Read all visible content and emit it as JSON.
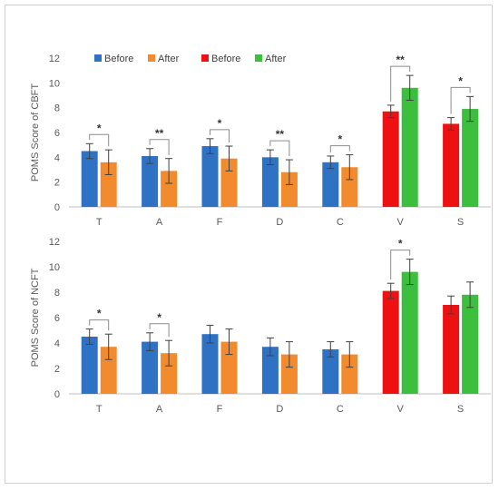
{
  "chart_data": [
    {
      "type": "bar",
      "ylabel": "POMS Score of CBFT",
      "categories": [
        "T",
        "A",
        "F",
        "D",
        "C",
        "V",
        "S"
      ],
      "yticks": [
        0,
        2,
        4,
        6,
        8,
        10,
        12
      ],
      "ylim": [
        0,
        12
      ],
      "grid": false,
      "legend": {
        "placement": "top-left",
        "entries": [
          {
            "label": "Before",
            "color": "#2f72c4"
          },
          {
            "label": "After",
            "color": "#f28a2e"
          },
          {
            "label": "Before",
            "color": "#ee1111"
          },
          {
            "label": "After",
            "color": "#3cbf3c"
          }
        ]
      },
      "series": [
        {
          "values": [
            4.5,
            4.1,
            4.9,
            4.0,
            3.6,
            7.7,
            6.7
          ],
          "errors": [
            0.6,
            0.6,
            0.6,
            0.6,
            0.5,
            0.5,
            0.5
          ],
          "colors": [
            "#2f72c4",
            "#2f72c4",
            "#2f72c4",
            "#2f72c4",
            "#2f72c4",
            "#ee1111",
            "#ee1111"
          ]
        },
        {
          "values": [
            3.6,
            2.9,
            3.9,
            2.8,
            3.2,
            9.6,
            7.9
          ],
          "errors": [
            1.0,
            1.0,
            1.0,
            1.0,
            1.0,
            1.0,
            1.0
          ],
          "colors": [
            "#f28a2e",
            "#f28a2e",
            "#f28a2e",
            "#f28a2e",
            "#f28a2e",
            "#3cbf3c",
            "#3cbf3c"
          ]
        }
      ],
      "significance": [
        "*",
        "**",
        "*",
        "**",
        "*",
        "**",
        "*"
      ]
    },
    {
      "type": "bar",
      "ylabel": "POMS Score of NCFT",
      "categories": [
        "T",
        "A",
        "F",
        "D",
        "C",
        "V",
        "S"
      ],
      "yticks": [
        0,
        2,
        4,
        6,
        8,
        10,
        12
      ],
      "ylim": [
        0,
        12
      ],
      "grid": false,
      "series": [
        {
          "values": [
            4.5,
            4.1,
            4.7,
            3.7,
            3.5,
            8.1,
            7.0
          ],
          "errors": [
            0.6,
            0.7,
            0.7,
            0.7,
            0.6,
            0.6,
            0.7
          ],
          "colors": [
            "#2f72c4",
            "#2f72c4",
            "#2f72c4",
            "#2f72c4",
            "#2f72c4",
            "#ee1111",
            "#ee1111"
          ]
        },
        {
          "values": [
            3.7,
            3.2,
            4.1,
            3.1,
            3.1,
            9.6,
            7.8
          ],
          "errors": [
            1.0,
            1.0,
            1.0,
            1.0,
            1.0,
            1.0,
            1.0
          ],
          "colors": [
            "#f28a2e",
            "#f28a2e",
            "#f28a2e",
            "#f28a2e",
            "#f28a2e",
            "#3cbf3c",
            "#3cbf3c"
          ]
        }
      ],
      "significance": [
        "*",
        "*",
        "",
        "",
        "",
        "*",
        ""
      ]
    }
  ]
}
